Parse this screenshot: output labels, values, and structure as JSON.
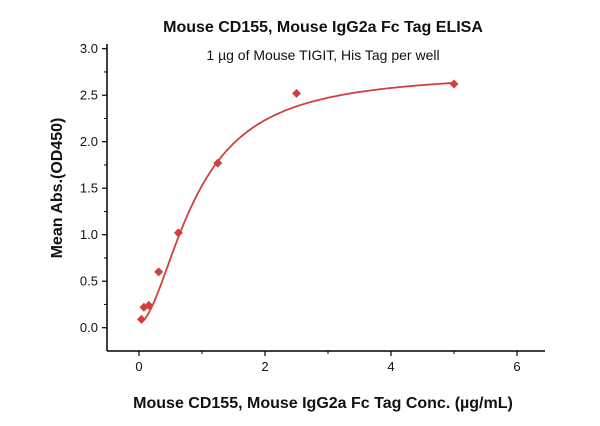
{
  "chart_data": {
    "type": "scatter",
    "title": "Mouse CD155, Mouse IgG2a Fc Tag ELISA",
    "subtitle": "1 µg of Mouse TIGIT, His Tag per well",
    "xlabel": "Mouse CD155, Mouse IgG2a Fc Tag Conc. (µg/mL)",
    "ylabel": "Mean Abs.(OD450)",
    "xlim": [
      -0.5,
      6
    ],
    "ylim": [
      -0.2,
      3.0
    ],
    "xticks": [
      0,
      2,
      4,
      6
    ],
    "yticks": [
      "0.0",
      "0.5",
      "1.0",
      "1.5",
      "2.0",
      "2.5",
      "3.0"
    ],
    "grid": false,
    "color": "#d04040",
    "points": [
      {
        "x": 0.039,
        "y": 0.09
      },
      {
        "x": 0.078,
        "y": 0.22
      },
      {
        "x": 0.156,
        "y": 0.24
      },
      {
        "x": 0.3125,
        "y": 0.6
      },
      {
        "x": 0.625,
        "y": 1.02
      },
      {
        "x": 1.25,
        "y": 1.77
      },
      {
        "x": 2.5,
        "y": 2.52
      },
      {
        "x": 5,
        "y": 2.62
      }
    ],
    "fit_line": true
  }
}
